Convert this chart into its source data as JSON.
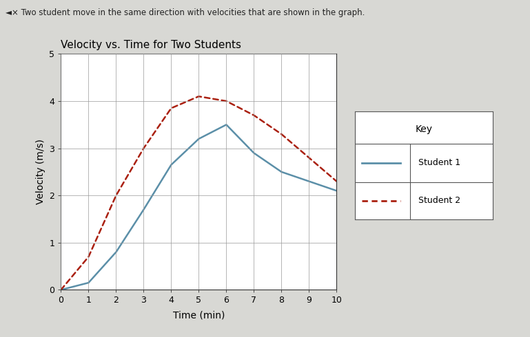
{
  "title": "Velocity vs. Time for Two Students",
  "xlabel": "Time (min)",
  "ylabel": "Velocity (m/s)",
  "xlim": [
    0,
    10
  ],
  "ylim": [
    0,
    5
  ],
  "xticks": [
    0,
    1,
    2,
    3,
    4,
    5,
    6,
    7,
    8,
    9,
    10
  ],
  "yticks": [
    0,
    1,
    2,
    3,
    4,
    5
  ],
  "student1_x": [
    0,
    1,
    2,
    3,
    4,
    5,
    6,
    7,
    8,
    9,
    10
  ],
  "student1_y": [
    0,
    0.15,
    0.8,
    1.7,
    2.65,
    3.2,
    3.5,
    2.9,
    2.5,
    2.3,
    2.1
  ],
  "student2_x": [
    0,
    1,
    2,
    3,
    4,
    5,
    6,
    7,
    8,
    9,
    10
  ],
  "student2_y": [
    0,
    0.7,
    2.0,
    3.0,
    3.85,
    4.1,
    4.0,
    3.7,
    3.3,
    2.8,
    2.3
  ],
  "student1_color": "#5b8fa8",
  "student2_color": "#aa2010",
  "background_color": "#d8d8d4",
  "plot_bg_color": "#ffffff",
  "grid_color": "#999999",
  "title_fontsize": 11,
  "axis_label_fontsize": 10,
  "tick_fontsize": 9,
  "header_text": "Two student move in the same direction with velocities that are shown in the graph.",
  "key_title": "Key",
  "key_student1": "Student 1",
  "key_student2": "Student 2"
}
